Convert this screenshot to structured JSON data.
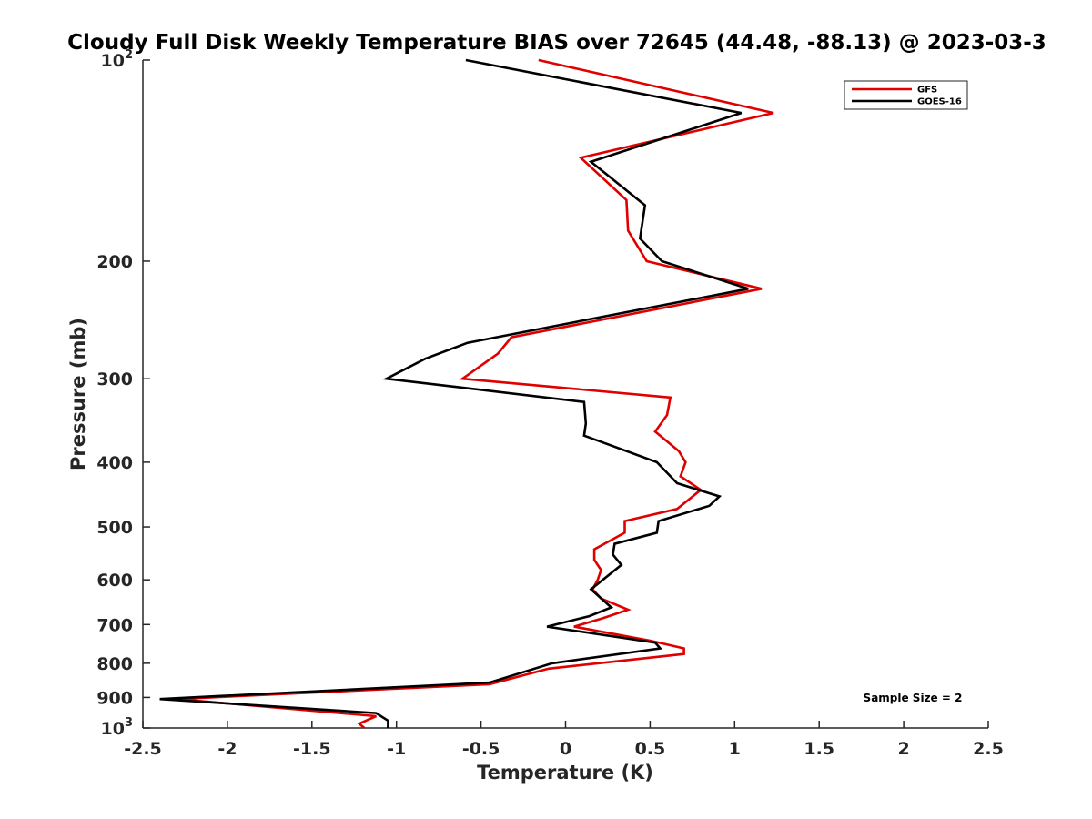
{
  "chart_data": {
    "type": "line",
    "title": "Cloudy Full Disk Weekly Temperature BIAS over 72645 (44.48, -88.13) @ 2023-03-3",
    "xlabel": "Temperature (K)",
    "ylabel": "Pressure (mb)",
    "xlim": [
      -2.5,
      2.5
    ],
    "ylim": [
      100,
      1000
    ],
    "y_scale": "log",
    "y_reversed": true,
    "grid": false,
    "legend_position": "top-right",
    "x_ticks": [
      -2.5,
      -2,
      -1.5,
      -1,
      -0.5,
      0,
      0.5,
      1,
      1.5,
      2,
      2.5
    ],
    "x_tick_labels": [
      "-2.5",
      "-2",
      "-1.5",
      "-1",
      "-0.5",
      "0",
      "0.5",
      "1",
      "1.5",
      "2",
      "2.5"
    ],
    "y_ticks": [
      100,
      200,
      300,
      400,
      500,
      600,
      700,
      800,
      900,
      1000
    ],
    "y_tick_labels": [
      {
        "base": "10",
        "exp": "2"
      },
      {
        "base": "200",
        "exp": ""
      },
      {
        "base": "300",
        "exp": ""
      },
      {
        "base": "400",
        "exp": ""
      },
      {
        "base": "500",
        "exp": ""
      },
      {
        "base": "600",
        "exp": ""
      },
      {
        "base": "700",
        "exp": ""
      },
      {
        "base": "800",
        "exp": ""
      },
      {
        "base": "900",
        "exp": ""
      },
      {
        "base": "10",
        "exp": "3"
      }
    ],
    "series": [
      {
        "name": "GFS",
        "color": "#e00000",
        "points": [
          [
            -0.16,
            100
          ],
          [
            1.23,
            120
          ],
          [
            0.09,
            140
          ],
          [
            0.36,
            162
          ],
          [
            0.37,
            180
          ],
          [
            0.48,
            200
          ],
          [
            1.16,
            220
          ],
          [
            -0.32,
            260
          ],
          [
            -0.4,
            275
          ],
          [
            -0.61,
            300
          ],
          [
            0.62,
            320
          ],
          [
            0.6,
            340
          ],
          [
            0.53,
            360
          ],
          [
            0.67,
            385
          ],
          [
            0.71,
            400
          ],
          [
            0.68,
            420
          ],
          [
            0.8,
            440
          ],
          [
            0.66,
            470
          ],
          [
            0.35,
            490
          ],
          [
            0.35,
            510
          ],
          [
            0.17,
            540
          ],
          [
            0.17,
            560
          ],
          [
            0.21,
            580
          ],
          [
            0.19,
            600
          ],
          [
            0.16,
            620
          ],
          [
            0.21,
            640
          ],
          [
            0.37,
            665
          ],
          [
            0.22,
            685
          ],
          [
            0.05,
            705
          ],
          [
            0.5,
            740
          ],
          [
            0.7,
            760
          ],
          [
            0.7,
            775
          ],
          [
            -0.1,
            815
          ],
          [
            -0.45,
            860
          ],
          [
            -2.3,
            905
          ],
          [
            -1.12,
            960
          ],
          [
            -1.22,
            985
          ],
          [
            -1.19,
            1000
          ]
        ]
      },
      {
        "name": "GOES-16",
        "color": "#000000",
        "points": [
          [
            -0.59,
            100
          ],
          [
            1.04,
            120
          ],
          [
            0.15,
            142
          ],
          [
            0.47,
            165
          ],
          [
            0.44,
            185
          ],
          [
            0.57,
            200
          ],
          [
            1.08,
            220
          ],
          [
            -0.58,
            265
          ],
          [
            -0.83,
            280
          ],
          [
            -1.06,
            300
          ],
          [
            0.11,
            325
          ],
          [
            0.12,
            350
          ],
          [
            0.11,
            365
          ],
          [
            0.54,
            400
          ],
          [
            0.66,
            430
          ],
          [
            0.91,
            450
          ],
          [
            0.85,
            465
          ],
          [
            0.55,
            490
          ],
          [
            0.54,
            510
          ],
          [
            0.29,
            530
          ],
          [
            0.28,
            550
          ],
          [
            0.33,
            570
          ],
          [
            0.22,
            600
          ],
          [
            0.15,
            620
          ],
          [
            0.27,
            660
          ],
          [
            0.14,
            680
          ],
          [
            -0.11,
            705
          ],
          [
            0.53,
            745
          ],
          [
            0.56,
            760
          ],
          [
            -0.08,
            800
          ],
          [
            -0.45,
            855
          ],
          [
            -2.4,
            905
          ],
          [
            -1.12,
            950
          ],
          [
            -1.05,
            975
          ],
          [
            -1.05,
            1000
          ]
        ]
      }
    ],
    "legend": [
      {
        "label": "GFS",
        "color": "#e00000"
      },
      {
        "label": "GOES-16",
        "color": "#000000"
      }
    ],
    "annotation": "Sample Size = 2"
  }
}
